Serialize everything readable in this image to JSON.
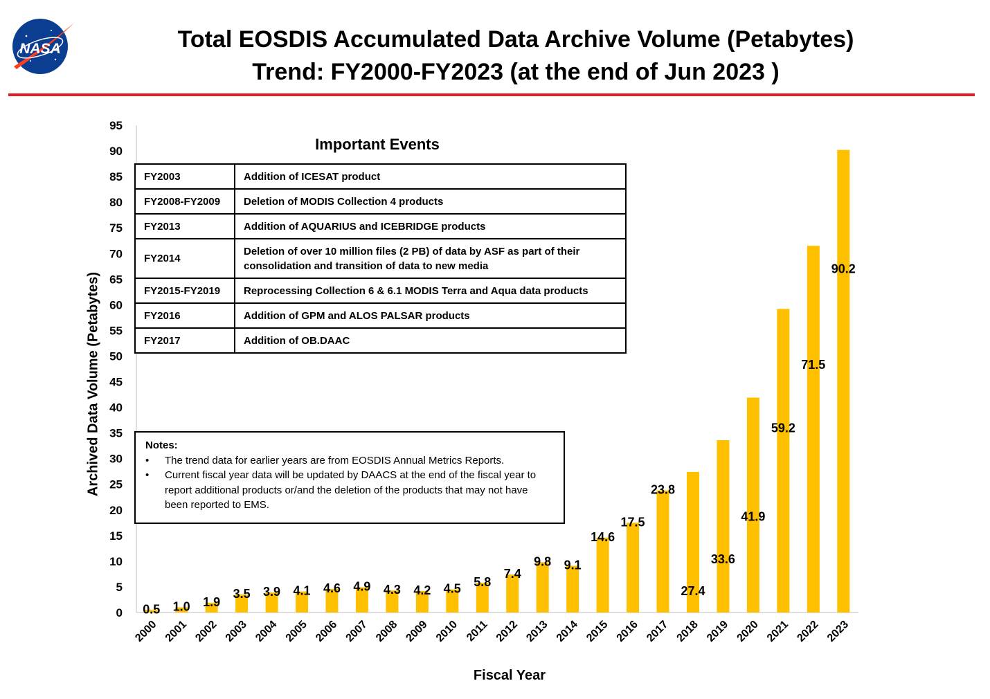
{
  "logo": {
    "text": "NASA"
  },
  "header": {
    "title_line1": "Total EOSDIS Accumulated Data Archive Volume (Petabytes)",
    "title_line2": "Trend: FY2000-FY2023 (at the end of Jun 2023 )",
    "rule_color": "#e31b23"
  },
  "events": {
    "heading": "Important Events",
    "rows": [
      {
        "year": "FY2003",
        "desc": "Addition of ICESAT product"
      },
      {
        "year": "FY2008-FY2009",
        "desc": "Deletion of  MODIS Collection 4 products"
      },
      {
        "year": "FY2013",
        "desc": "Addition of AQUARIUS and ICEBRIDGE products"
      },
      {
        "year": "FY2014",
        "desc": "Deletion of over 10 million files (2 PB) of data by ASF as part of their consolidation and transition of data to new media"
      },
      {
        "year": "FY2015-FY2019",
        "desc": "Reprocessing  Collection 6 & 6.1 MODIS Terra and Aqua data products"
      },
      {
        "year": "FY2016",
        "desc": "Addition of GPM and ALOS PALSAR products"
      },
      {
        "year": "FY2017",
        "desc": "Addition of OB.DAAC"
      }
    ]
  },
  "notes": {
    "title": "Notes:",
    "items": [
      "The trend data for earlier years are from EOSDIS Annual Metrics Reports.",
      "Current fiscal year data will be updated by DAACS at the end of the fiscal year to report additional products or/and the deletion of the products that may not have been reported to EMS."
    ]
  },
  "chart_data": {
    "type": "bar",
    "title": "Total EOSDIS Accumulated Data Archive Volume (Petabytes) Trend: FY2000-FY2023 (at the end of Jun 2023 )",
    "xlabel": "Fiscal Year",
    "ylabel": "Archived Data Volume (Petabytes)",
    "ylim": [
      0,
      95
    ],
    "yticks": [
      0,
      5,
      10,
      15,
      20,
      25,
      30,
      35,
      40,
      45,
      50,
      55,
      60,
      65,
      70,
      75,
      80,
      85,
      90,
      95
    ],
    "categories": [
      "2000",
      "2001",
      "2002",
      "2003",
      "2004",
      "2005",
      "2006",
      "2007",
      "2008",
      "2009",
      "2010",
      "2011",
      "2012",
      "2013",
      "2014",
      "2015",
      "2016",
      "2017",
      "2018",
      "2019",
      "2020",
      "2021",
      "2022",
      "2023"
    ],
    "values": [
      0.5,
      1.0,
      1.9,
      3.5,
      3.9,
      4.1,
      4.6,
      4.9,
      4.3,
      4.2,
      4.5,
      5.8,
      7.4,
      9.8,
      9.1,
      14.6,
      17.5,
      23.8,
      27.4,
      33.6,
      41.9,
      59.2,
      71.5,
      90.2
    ],
    "labels": [
      "0.5",
      "1.0",
      "1.9",
      "3.5",
      "3.9",
      "4.1",
      "4.6",
      "4.9",
      "4.3",
      "4.2",
      "4.5",
      "5.8",
      "7.4",
      "9.8",
      "9.1",
      "14.6",
      "17.5",
      "23.8",
      "27.4",
      "33.6",
      "41.9",
      "59.2",
      "71.5",
      "90.2"
    ],
    "bar_color": "#ffc000",
    "grid": false,
    "legend": "none"
  }
}
